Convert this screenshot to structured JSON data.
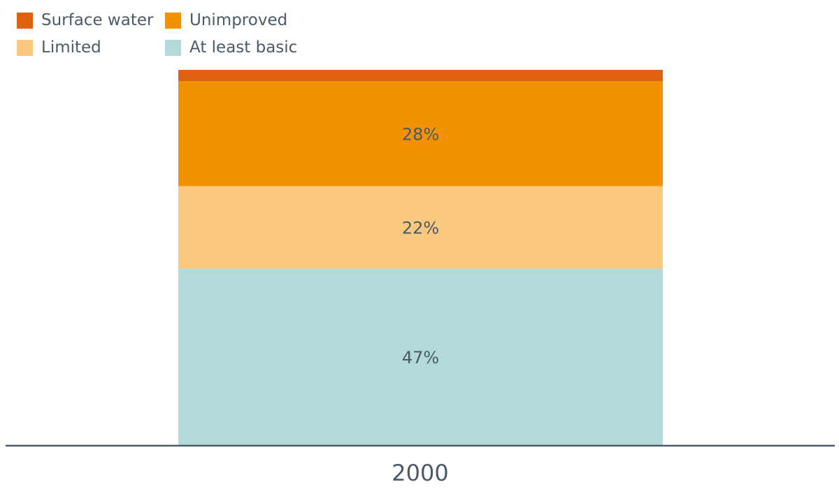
{
  "chart_data": {
    "type": "bar",
    "stacked": true,
    "categories": [
      "2000"
    ],
    "series": [
      {
        "name": "At least basic",
        "values": [
          47
        ],
        "label": "47%",
        "color": "#b3dada"
      },
      {
        "name": "Limited",
        "values": [
          22
        ],
        "label": "22%",
        "color": "#fbc97e"
      },
      {
        "name": "Unimproved",
        "values": [
          28
        ],
        "label": "28%",
        "color": "#f39200"
      },
      {
        "name": "Surface water",
        "values": [
          3
        ],
        "label": "",
        "color": "#e06010"
      }
    ],
    "ylim": [
      0,
      100
    ],
    "grid": false,
    "legend": {
      "placement": "top-left",
      "items": [
        {
          "name": "Surface water",
          "color": "#e06010"
        },
        {
          "name": "Unimproved",
          "color": "#f39200"
        },
        {
          "name": "Limited",
          "color": "#fbc97e"
        },
        {
          "name": "At least basic",
          "color": "#b3dada"
        }
      ]
    },
    "axis_color": "#4a5a68",
    "text_color": "#4a5a68"
  }
}
